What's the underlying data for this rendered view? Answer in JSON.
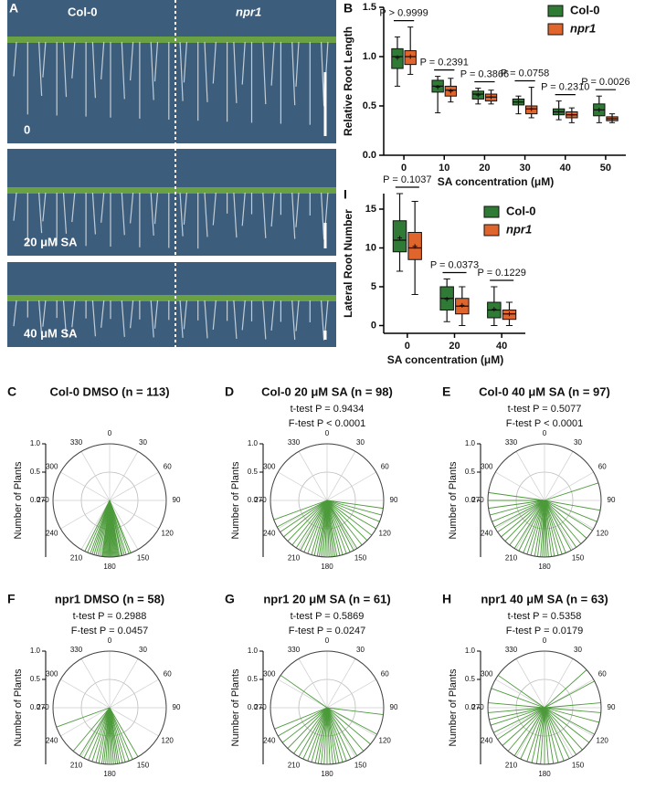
{
  "photo_panel": {
    "panel": "A",
    "genotypes": [
      "Col-0",
      "npr1"
    ],
    "treatments": [
      "0",
      "20 μM SA",
      "40 μM SA"
    ]
  },
  "chart_data": [
    {
      "type": "box",
      "panel": "B",
      "ylabel": "Relative Root Length",
      "xlabel": "SA concentration (μM)",
      "categories": [
        "0",
        "10",
        "20",
        "30",
        "40",
        "50"
      ],
      "ylim": [
        0,
        1.5
      ],
      "yticks": [
        {
          "value": 0,
          "label": "0.0"
        },
        0.5,
        {
          "value": 1,
          "label": "1.0"
        },
        1.5
      ],
      "legend": "upper right",
      "annotations": [
        "P > 0.9999",
        "P = 0.2391",
        "P = 0.3866",
        "P = 0.0758",
        "P = 0.2310",
        "P = 0.0026"
      ],
      "series": [
        {
          "name": "Col-0",
          "color": "#2f7a34",
          "min": [
            0.7,
            0.43,
            0.52,
            0.42,
            0.36,
            0.33
          ],
          "q1": [
            0.88,
            0.64,
            0.57,
            0.51,
            0.41,
            0.4
          ],
          "median": [
            1.0,
            0.7,
            0.62,
            0.54,
            0.44,
            0.46
          ],
          "q3": [
            1.08,
            0.76,
            0.65,
            0.57,
            0.47,
            0.52
          ],
          "max": [
            1.2,
            0.8,
            0.68,
            0.6,
            0.55,
            0.6
          ],
          "mean": [
            0.99,
            0.69,
            0.61,
            0.54,
            0.44,
            0.46
          ]
        },
        {
          "name": "npr1",
          "color": "#e0652c",
          "min": [
            0.82,
            0.54,
            0.52,
            0.38,
            0.33,
            0.33
          ],
          "q1": [
            0.92,
            0.6,
            0.55,
            0.42,
            0.38,
            0.35
          ],
          "median": [
            1.0,
            0.66,
            0.59,
            0.47,
            0.41,
            0.37
          ],
          "q3": [
            1.06,
            0.7,
            0.62,
            0.5,
            0.44,
            0.39
          ],
          "max": [
            1.3,
            0.78,
            0.66,
            0.69,
            0.48,
            0.42
          ],
          "mean": [
            1.0,
            0.65,
            0.59,
            0.47,
            0.41,
            0.37
          ]
        }
      ]
    },
    {
      "type": "box",
      "panel": "I",
      "ylabel": "Lateral Root Number",
      "xlabel": "SA concentration (μM)",
      "categories": [
        "0",
        "20",
        "40"
      ],
      "ylim": [
        -1,
        17
      ],
      "yticks": [
        0,
        5,
        10,
        15
      ],
      "legend": "upper right",
      "annotations": [
        "P = 0.1037",
        "P = 0.0373",
        "P = 0.1229"
      ],
      "series": [
        {
          "name": "Col-0",
          "color": "#2f7a34",
          "min": [
            7,
            0.5,
            0
          ],
          "q1": [
            9.5,
            2,
            1
          ],
          "median": [
            11,
            3.5,
            2
          ],
          "q3": [
            13.5,
            5,
            3
          ],
          "max": [
            17,
            6,
            5
          ],
          "mean": [
            11.3,
            3.4,
            2.1
          ]
        },
        {
          "name": "npr1",
          "color": "#e0652c",
          "min": [
            4,
            0,
            0
          ],
          "q1": [
            8.5,
            1.5,
            0.8
          ],
          "median": [
            10,
            2.5,
            1.5
          ],
          "q3": [
            12,
            3.5,
            2
          ],
          "max": [
            16,
            5,
            3
          ],
          "mean": [
            10.2,
            2.6,
            1.5
          ]
        }
      ]
    },
    {
      "type": "polar",
      "panel": "C",
      "title": "Col-0 DMSO (n = 113)",
      "ylabel": "Number of Plants",
      "color": "#4c9a3a",
      "rlim": [
        0,
        1
      ],
      "rticks": [
        {
          "value": 0,
          "label": "0.0"
        },
        0.5,
        {
          "value": 1,
          "label": "1.0"
        }
      ],
      "thetaticks": [
        0,
        30,
        60,
        90,
        120,
        150,
        180,
        210,
        240,
        270,
        300,
        330
      ],
      "values": [
        158,
        160,
        163,
        165,
        167,
        168,
        170,
        171,
        172,
        173,
        174,
        175,
        176,
        177,
        178,
        179,
        180,
        181,
        182,
        183,
        184,
        185,
        186,
        187,
        188,
        190,
        192,
        194,
        196,
        198,
        200,
        203,
        206
      ]
    },
    {
      "type": "polar",
      "panel": "D",
      "title": "Col-0 20 μM SA (n = 98)",
      "stats": [
        "t-test  P = 0.9434",
        "F-test  P < 0.0001"
      ],
      "ylabel": "Number of Plants",
      "color": "#4c9a3a",
      "rlim": [
        0,
        1
      ],
      "rticks": [
        {
          "value": 0,
          "label": "0.0"
        },
        0.5,
        {
          "value": 1,
          "label": "1.0"
        }
      ],
      "thetaticks": [
        0,
        30,
        60,
        90,
        120,
        150,
        180,
        210,
        240,
        270,
        300,
        330
      ],
      "values": [
        98,
        105,
        112,
        120,
        128,
        135,
        142,
        148,
        152,
        156,
        160,
        164,
        167,
        170,
        172,
        174,
        176,
        178,
        180,
        182,
        184,
        186,
        188,
        190,
        193,
        196,
        200,
        204,
        208,
        213,
        218,
        224,
        230,
        236,
        242,
        250
      ]
    },
    {
      "type": "polar",
      "panel": "E",
      "title": "Col-0 40 μM SA (n = 97)",
      "stats": [
        "t-test  P = 0.5077",
        "F-test  P < 0.0001"
      ],
      "ylabel": "Number of Plants",
      "color": "#4c9a3a",
      "rlim": [
        0,
        1
      ],
      "rticks": [
        {
          "value": 0,
          "label": "0.0"
        },
        0.5,
        {
          "value": 1,
          "label": "1.0"
        }
      ],
      "thetaticks": [
        0,
        30,
        60,
        90,
        120,
        150,
        180,
        210,
        240,
        270,
        300,
        330
      ],
      "values": [
        72,
        100,
        112,
        122,
        132,
        140,
        146,
        152,
        158,
        162,
        166,
        170,
        173,
        176,
        178,
        180,
        182,
        184,
        187,
        190,
        194,
        198,
        202,
        207,
        212,
        218,
        224,
        230,
        236,
        242,
        248,
        255,
        262,
        270,
        278
      ]
    },
    {
      "type": "polar",
      "panel": "F",
      "title": "npr1 DMSO (n = 58)",
      "stats": [
        "t-test  P = 0.2988",
        "F-test  P = 0.0457"
      ],
      "ylabel": "Number of Plants",
      "color": "#4c9a3a",
      "rlim": [
        0,
        1
      ],
      "rticks": [
        {
          "value": 0,
          "label": "0.0"
        },
        0.5,
        {
          "value": 1,
          "label": "1.0"
        }
      ],
      "thetaticks": [
        0,
        30,
        60,
        90,
        120,
        150,
        180,
        210,
        240,
        270,
        300,
        330
      ],
      "values": [
        150,
        156,
        160,
        164,
        167,
        170,
        172,
        174,
        176,
        178,
        180,
        182,
        184,
        186,
        188,
        191,
        194,
        198,
        202,
        207,
        212,
        220,
        250
      ]
    },
    {
      "type": "polar",
      "panel": "G",
      "title": "npr1 20 μM SA (n = 61)",
      "stats": [
        "t-test  P = 0.5869",
        "F-test  P = 0.0247"
      ],
      "ylabel": "Number of Plants",
      "color": "#4c9a3a",
      "rlim": [
        0,
        1
      ],
      "rticks": [
        {
          "value": 0,
          "label": "0.0"
        },
        0.5,
        {
          "value": 1,
          "label": "1.0"
        }
      ],
      "thetaticks": [
        0,
        30,
        60,
        90,
        120,
        150,
        180,
        210,
        240,
        270,
        300,
        330
      ],
      "values": [
        97,
        118,
        130,
        140,
        148,
        155,
        160,
        164,
        168,
        171,
        174,
        177,
        180,
        183,
        186,
        189,
        192,
        196,
        200,
        205,
        210,
        216,
        224,
        232,
        240,
        248,
        305
      ]
    },
    {
      "type": "polar",
      "panel": "H",
      "title": "npr1 40 μM SA (n = 63)",
      "stats": [
        "t-test  P = 0.5358",
        "F-test  P = 0.0179"
      ],
      "ylabel": "Number of Plants",
      "color": "#4c9a3a",
      "rlim": [
        0,
        1
      ],
      "rticks": [
        {
          "value": 0,
          "label": "0.0"
        },
        0.5,
        {
          "value": 1,
          "label": "1.0"
        }
      ],
      "thetaticks": [
        0,
        30,
        60,
        90,
        120,
        150,
        180,
        210,
        240,
        270,
        300,
        330
      ],
      "values": [
        48,
        62,
        85,
        95,
        105,
        118,
        128,
        138,
        146,
        154,
        160,
        166,
        171,
        176,
        180,
        184,
        188,
        193,
        198,
        205,
        212,
        220,
        228,
        236,
        244,
        252,
        258,
        265,
        275,
        290,
        305
      ]
    }
  ]
}
